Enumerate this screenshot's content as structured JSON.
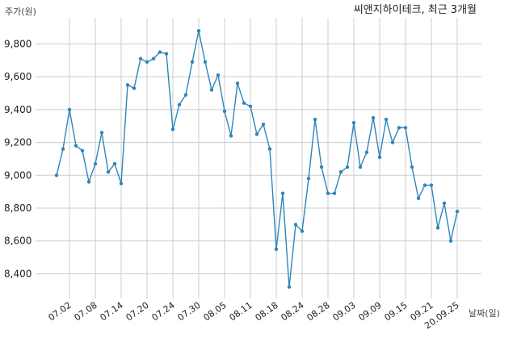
{
  "chart_data": {
    "type": "line",
    "title": "씨앤지하이테크, 최근 3개월",
    "ylabel": "주가(원)",
    "xlabel": "날짜(일)",
    "ylim": [
      8250,
      9920
    ],
    "yticks": [
      8400,
      8600,
      8800,
      9000,
      9200,
      9400,
      9600,
      9800
    ],
    "ytick_labels": [
      "8,400",
      "8,600",
      "8,800",
      "9,000",
      "9,200",
      "9,400",
      "9,600",
      "9,800"
    ],
    "xtick_labels": [
      "07.02",
      "07.08",
      "07.14",
      "07.20",
      "07.24",
      "07.30",
      "08.05",
      "08.11",
      "08.18",
      "08.24",
      "08.28",
      "09.03",
      "09.09",
      "09.15",
      "09.21",
      "20.09.25"
    ],
    "xtick_indices": [
      2,
      6,
      10,
      14,
      18,
      22,
      26,
      30,
      34,
      38,
      42,
      46,
      50,
      54,
      58,
      62
    ],
    "grid": true,
    "series": [
      {
        "color": "#2e86ba",
        "values": [
          9000,
          9160,
          9400,
          9180,
          9150,
          8960,
          9070,
          9260,
          9020,
          9070,
          8950,
          9550,
          9530,
          9710,
          9690,
          9710,
          9750,
          9740,
          9280,
          9430,
          9490,
          9690,
          9880,
          9690,
          9520,
          9610,
          9390,
          9240,
          9560,
          9440,
          9420,
          9250,
          9310,
          9160,
          8550,
          8890,
          8320,
          8700,
          8660,
          8980,
          9340,
          9050,
          8890,
          8890,
          9020,
          9050,
          9320,
          9050,
          9140,
          9350,
          9110,
          9340,
          9200,
          9290,
          9290,
          9050,
          8860,
          8940,
          8940,
          8680,
          8830,
          8600,
          8780
        ]
      }
    ]
  }
}
